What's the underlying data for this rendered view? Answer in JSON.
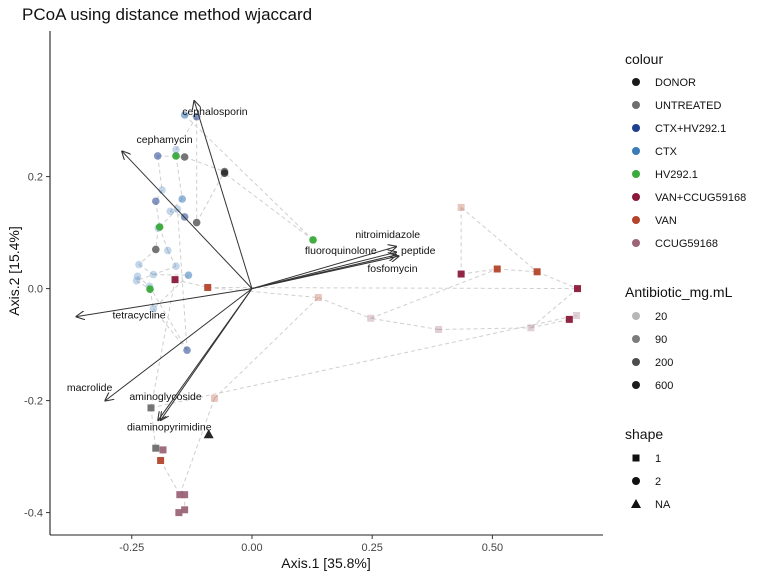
{
  "chart_data": {
    "type": "scatter",
    "title": "PCoA using distance method wjaccard",
    "xlabel": "Axis.1   [35.8%]",
    "ylabel": "Axis.2   [15.4%]",
    "xlim": [
      -0.42,
      0.73
    ],
    "ylim": [
      -0.44,
      0.46
    ],
    "x_ticks": [
      "-0.25",
      "0.00",
      "0.25",
      "0.50"
    ],
    "x_tick_values": [
      -0.25,
      0.0,
      0.25,
      0.5
    ],
    "y_ticks": [
      "-0.4",
      "-0.2",
      "0.0",
      "0.2"
    ],
    "y_tick_values": [
      -0.4,
      -0.2,
      0.0,
      0.2
    ],
    "grid": false,
    "legend_placement": "right",
    "colors": {
      "DONOR": "#1a1a1a",
      "UNTREATED": "#6e6e6e",
      "CTX+HV292.1": "#1f3f8f",
      "CTX": "#3a7bb8",
      "HV292.1": "#3aaa3a",
      "VAN+CCUG59168": "#8b1a3a",
      "VAN": "#b5442c",
      "CCUG59168": "#9b6478"
    },
    "alpha_by_dose": {
      "20": 0.3,
      "90": 0.55,
      "200": 0.75,
      "600": 0.95
    },
    "vectors": [
      {
        "label": "cephalosporin",
        "x": -0.12,
        "y": 0.335,
        "lx": -0.145,
        "ly": 0.31
      },
      {
        "label": "cephamycin",
        "x": -0.27,
        "y": 0.245,
        "lx": -0.24,
        "ly": 0.26
      },
      {
        "label": "tetracycline",
        "x": -0.365,
        "y": -0.05,
        "lx": -0.29,
        "ly": -0.053
      },
      {
        "label": "macrolide",
        "x": -0.305,
        "y": -0.2,
        "lx": -0.385,
        "ly": -0.183
      },
      {
        "label": "aminoglycoside",
        "x": -0.195,
        "y": -0.235,
        "lx": -0.255,
        "ly": -0.199
      },
      {
        "label": "diaminopyrimidine",
        "x": -0.19,
        "y": -0.235,
        "lx": -0.26,
        "ly": -0.253
      },
      {
        "label": "nitroimidazole",
        "x": 0.3,
        "y": 0.075,
        "lx": 0.215,
        "ly": 0.09
      },
      {
        "label": "fluoroquinolone",
        "x": 0.3,
        "y": 0.065,
        "lx": 0.11,
        "ly": 0.062
      },
      {
        "label": "peptide",
        "x": 0.305,
        "y": 0.058,
        "lx": 0.31,
        "ly": 0.062
      },
      {
        "label": "fosfomycin",
        "x": 0.3,
        "y": 0.06,
        "lx": 0.24,
        "ly": 0.03
      }
    ],
    "points": [
      {
        "x": -0.196,
        "y": 0.237,
        "group": "CTX+HV292.1",
        "dose": "90",
        "shape": "2"
      },
      {
        "x": -0.158,
        "y": 0.237,
        "group": "HV292.1",
        "dose": "600",
        "shape": "2"
      },
      {
        "x": -0.14,
        "y": 0.235,
        "group": "UNTREATED",
        "dose": "600",
        "shape": "2"
      },
      {
        "x": -0.158,
        "y": 0.248,
        "group": "CTX",
        "dose": "20",
        "shape": "2"
      },
      {
        "x": -0.14,
        "y": 0.31,
        "group": "CTX",
        "dose": "90",
        "shape": "2"
      },
      {
        "x": -0.115,
        "y": 0.307,
        "group": "CTX+HV292.1",
        "dose": "90",
        "shape": "2"
      },
      {
        "x": -0.057,
        "y": 0.209,
        "group": "UNTREATED",
        "dose": "600",
        "shape": "2"
      },
      {
        "x": -0.057,
        "y": 0.206,
        "group": "DONOR",
        "dose": "200",
        "shape": "2"
      },
      {
        "x": -0.187,
        "y": 0.176,
        "group": "CTX",
        "dose": "20",
        "shape": "2"
      },
      {
        "x": -0.2,
        "y": 0.156,
        "group": "CTX+HV292.1",
        "dose": "90",
        "shape": "2"
      },
      {
        "x": -0.145,
        "y": 0.16,
        "group": "CTX",
        "dose": "90",
        "shape": "2"
      },
      {
        "x": -0.17,
        "y": 0.138,
        "group": "CTX",
        "dose": "20",
        "shape": "2"
      },
      {
        "x": -0.155,
        "y": 0.142,
        "group": "CTX",
        "dose": "20",
        "shape": "2"
      },
      {
        "x": -0.115,
        "y": 0.118,
        "group": "UNTREATED",
        "dose": "600",
        "shape": "2"
      },
      {
        "x": -0.14,
        "y": 0.128,
        "group": "CTX+HV292.1",
        "dose": "90",
        "shape": "2"
      },
      {
        "x": -0.195,
        "y": 0.108,
        "group": "CTX",
        "dose": "20",
        "shape": "2"
      },
      {
        "x": -0.192,
        "y": 0.11,
        "group": "HV292.1",
        "dose": "600",
        "shape": "2"
      },
      {
        "x": -0.2,
        "y": 0.07,
        "group": "UNTREATED",
        "dose": "600",
        "shape": "2"
      },
      {
        "x": -0.175,
        "y": 0.068,
        "group": "CTX",
        "dose": "20",
        "shape": "2"
      },
      {
        "x": -0.235,
        "y": 0.043,
        "group": "CTX",
        "dose": "20",
        "shape": "2"
      },
      {
        "x": -0.158,
        "y": 0.04,
        "group": "CTX",
        "dose": "20",
        "shape": "2"
      },
      {
        "x": -0.238,
        "y": 0.022,
        "group": "CTX",
        "dose": "20",
        "shape": "2"
      },
      {
        "x": -0.205,
        "y": 0.025,
        "group": "CTX",
        "dose": "20",
        "shape": "2"
      },
      {
        "x": -0.24,
        "y": 0.014,
        "group": "CTX",
        "dose": "20",
        "shape": "2"
      },
      {
        "x": -0.132,
        "y": 0.024,
        "group": "CTX",
        "dose": "90",
        "shape": "2"
      },
      {
        "x": -0.213,
        "y": 0.004,
        "group": "CTX",
        "dose": "20",
        "shape": "2"
      },
      {
        "x": -0.212,
        "y": -0.001,
        "group": "HV292.1",
        "dose": "600",
        "shape": "2"
      },
      {
        "x": -0.205,
        "y": -0.036,
        "group": "CTX",
        "dose": "20",
        "shape": "2"
      },
      {
        "x": -0.135,
        "y": -0.11,
        "group": "CTX+HV292.1",
        "dose": "90",
        "shape": "2"
      },
      {
        "x": 0.127,
        "y": 0.087,
        "group": "HV292.1",
        "dose": "600",
        "shape": "2"
      },
      {
        "x": -0.16,
        "y": 0.016,
        "group": "VAN+CCUG59168",
        "dose": "600",
        "shape": "1"
      },
      {
        "x": -0.092,
        "y": 0.002,
        "group": "VAN",
        "dose": "600",
        "shape": "1"
      },
      {
        "x": 0.138,
        "y": -0.016,
        "group": "VAN",
        "dose": "20",
        "shape": "1"
      },
      {
        "x": 0.247,
        "y": -0.053,
        "group": "CCUG59168",
        "dose": "20",
        "shape": "1"
      },
      {
        "x": 0.435,
        "y": 0.145,
        "group": "VAN",
        "dose": "20",
        "shape": "1"
      },
      {
        "x": 0.435,
        "y": 0.026,
        "group": "VAN+CCUG59168",
        "dose": "600",
        "shape": "1"
      },
      {
        "x": 0.51,
        "y": 0.035,
        "group": "VAN",
        "dose": "600",
        "shape": "1"
      },
      {
        "x": 0.593,
        "y": 0.03,
        "group": "VAN",
        "dose": "600",
        "shape": "1"
      },
      {
        "x": 0.677,
        "y": 0.0,
        "group": "VAN+CCUG59168",
        "dose": "600",
        "shape": "1"
      },
      {
        "x": 0.388,
        "y": -0.073,
        "group": "CCUG59168",
        "dose": "20",
        "shape": "1"
      },
      {
        "x": 0.58,
        "y": -0.07,
        "group": "CCUG59168",
        "dose": "20",
        "shape": "1"
      },
      {
        "x": 0.66,
        "y": -0.055,
        "group": "VAN+CCUG59168",
        "dose": "600",
        "shape": "1"
      },
      {
        "x": 0.675,
        "y": -0.048,
        "group": "CCUG59168",
        "dose": "20",
        "shape": "1"
      },
      {
        "x": -0.078,
        "y": -0.196,
        "group": "VAN",
        "dose": "20",
        "shape": "1"
      },
      {
        "x": -0.21,
        "y": -0.213,
        "group": "UNTREATED",
        "dose": "600",
        "shape": "1"
      },
      {
        "x": -0.2,
        "y": -0.285,
        "group": "UNTREATED",
        "dose": "600",
        "shape": "1"
      },
      {
        "x": -0.185,
        "y": -0.288,
        "group": "CCUG59168",
        "dose": "600",
        "shape": "1"
      },
      {
        "x": -0.19,
        "y": -0.307,
        "group": "VAN",
        "dose": "600",
        "shape": "1"
      },
      {
        "x": -0.15,
        "y": -0.368,
        "group": "CCUG59168",
        "dose": "600",
        "shape": "1"
      },
      {
        "x": -0.14,
        "y": -0.368,
        "group": "CCUG59168",
        "dose": "600",
        "shape": "1"
      },
      {
        "x": -0.14,
        "y": -0.395,
        "group": "CCUG59168",
        "dose": "600",
        "shape": "1"
      },
      {
        "x": -0.152,
        "y": -0.4,
        "group": "CCUG59168",
        "dose": "600",
        "shape": "1"
      },
      {
        "x": -0.09,
        "y": -0.26,
        "group": "DONOR",
        "dose": "600",
        "shape": "NA"
      }
    ],
    "links": [
      [
        0,
        2
      ],
      [
        2,
        6
      ],
      [
        6,
        7
      ],
      [
        0,
        8
      ],
      [
        1,
        10
      ],
      [
        3,
        5
      ],
      [
        4,
        5
      ],
      [
        5,
        13
      ],
      [
        13,
        6
      ],
      [
        8,
        9
      ],
      [
        9,
        16
      ],
      [
        10,
        11
      ],
      [
        11,
        14
      ],
      [
        14,
        12
      ],
      [
        12,
        15
      ],
      [
        15,
        17
      ],
      [
        17,
        19
      ],
      [
        19,
        22
      ],
      [
        22,
        24
      ],
      [
        24,
        27
      ],
      [
        18,
        20
      ],
      [
        20,
        23
      ],
      [
        23,
        26
      ],
      [
        21,
        25
      ],
      [
        25,
        28
      ],
      [
        4,
        29
      ],
      [
        29,
        7
      ],
      [
        16,
        18
      ],
      [
        26,
        27
      ],
      [
        27,
        28
      ],
      [
        28,
        12
      ],
      [
        30,
        31
      ],
      [
        31,
        32
      ],
      [
        32,
        33
      ],
      [
        33,
        36
      ],
      [
        36,
        37
      ],
      [
        37,
        38
      ],
      [
        38,
        40
      ],
      [
        40,
        41
      ],
      [
        41,
        42
      ],
      [
        39,
        33
      ],
      [
        34,
        35
      ],
      [
        35,
        36
      ],
      [
        31,
        38
      ],
      [
        30,
        44
      ],
      [
        44,
        45
      ],
      [
        45,
        46
      ],
      [
        46,
        47
      ],
      [
        47,
        48
      ],
      [
        48,
        49
      ],
      [
        49,
        50
      ],
      [
        50,
        51
      ],
      [
        43,
        48
      ],
      [
        43,
        32
      ],
      [
        44,
        42
      ],
      [
        34,
        37
      ],
      [
        39,
        40
      ]
    ]
  },
  "legend": {
    "colour_title": "colour",
    "colour_items": [
      "DONOR",
      "UNTREATED",
      "CTX+HV292.1",
      "CTX",
      "HV292.1",
      "VAN+CCUG59168",
      "VAN",
      "CCUG59168"
    ],
    "dose_title": "Antibiotic_mg.mL",
    "dose_items": [
      "20",
      "90",
      "200",
      "600"
    ],
    "shape_title": "shape",
    "shape_items": [
      "1",
      "2",
      "NA"
    ]
  }
}
